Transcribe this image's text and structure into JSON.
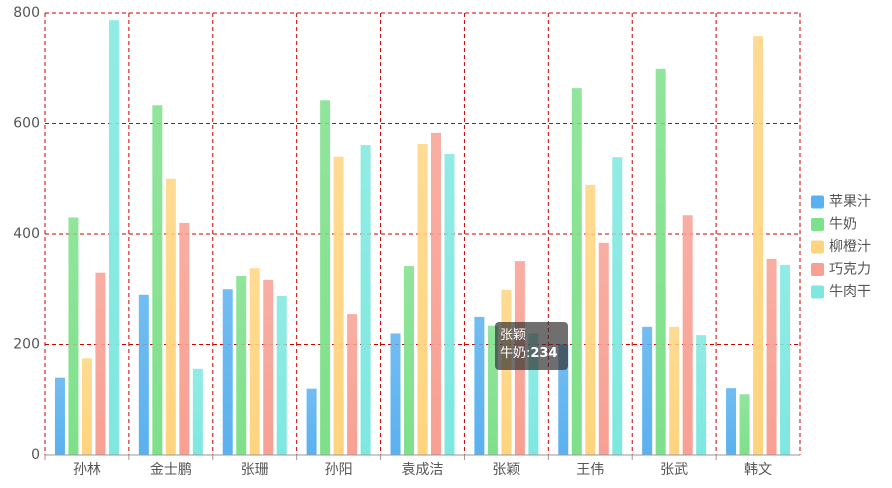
{
  "chart_data": {
    "type": "bar",
    "categories": [
      "孙林",
      "金士鹏",
      "张珊",
      "孙阳",
      "袁成洁",
      "张颖",
      "王伟",
      "张武",
      "韩文"
    ],
    "series": [
      {
        "name": "苹果汁",
        "color": "#5ab1ef",
        "values": [
          140,
          290,
          300,
          120,
          220,
          250,
          200,
          232,
          121
        ]
      },
      {
        "name": "牛奶",
        "color": "#7ee08a",
        "values": [
          430,
          633,
          324,
          642,
          342,
          234,
          664,
          699,
          110
        ]
      },
      {
        "name": "柳橙汁",
        "color": "#ffd47f",
        "values": [
          175,
          500,
          338,
          540,
          563,
          299,
          489,
          232,
          758
        ]
      },
      {
        "name": "巧克力",
        "color": "#f8a093",
        "values": [
          330,
          420,
          317,
          255,
          583,
          351,
          384,
          434,
          355
        ]
      },
      {
        "name": "牛肉干",
        "color": "#7ee8e0",
        "values": [
          787,
          156,
          288,
          561,
          545,
          220,
          539,
          217,
          344
        ]
      }
    ],
    "ylim": [
      0,
      800
    ],
    "yticks": [
      0,
      200,
      400,
      600,
      800
    ],
    "grid": true,
    "legend": "right",
    "tooltip": {
      "title": "张颖",
      "label": "牛奶:"
    }
  }
}
